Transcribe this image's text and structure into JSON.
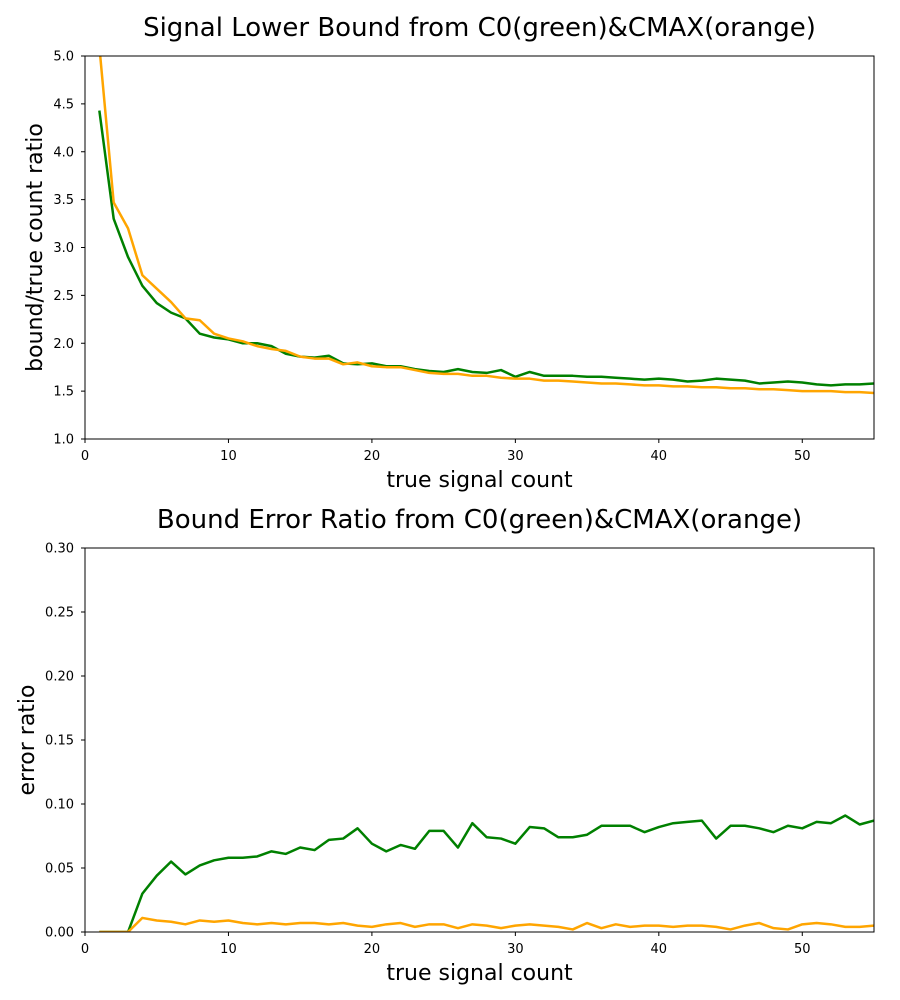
{
  "chart_data": [
    {
      "type": "line",
      "title": "Signal Lower Bound from C0(green)&CMAX(orange)",
      "xlabel": "true signal count",
      "ylabel": "bound/true count ratio",
      "xlim": [
        0,
        55
      ],
      "ylim": [
        1.0,
        5.0
      ],
      "xticks": [
        "0",
        "10",
        "20",
        "30",
        "40",
        "50"
      ],
      "yticks": [
        "1.0",
        "1.5",
        "2.0",
        "2.5",
        "3.0",
        "3.5",
        "4.0",
        "4.5",
        "5.0"
      ],
      "grid": false,
      "x": [
        1,
        2,
        3,
        4,
        5,
        6,
        7,
        8,
        9,
        10,
        11,
        12,
        13,
        14,
        15,
        16,
        17,
        18,
        19,
        20,
        21,
        22,
        23,
        24,
        25,
        26,
        27,
        28,
        29,
        30,
        31,
        32,
        33,
        34,
        35,
        36,
        37,
        38,
        39,
        40,
        41,
        42,
        43,
        44,
        45,
        46,
        47,
        48,
        49,
        50,
        51,
        52,
        53,
        54,
        55
      ],
      "series": [
        {
          "color": "#008000",
          "values": [
            4.43,
            3.3,
            2.9,
            2.6,
            2.42,
            2.32,
            2.26,
            2.1,
            2.06,
            2.04,
            2.0,
            2.0,
            1.97,
            1.89,
            1.86,
            1.85,
            1.87,
            1.79,
            1.78,
            1.79,
            1.76,
            1.76,
            1.73,
            1.71,
            1.7,
            1.73,
            1.7,
            1.69,
            1.72,
            1.65,
            1.7,
            1.66,
            1.66,
            1.66,
            1.65,
            1.65,
            1.64,
            1.63,
            1.62,
            1.63,
            1.62,
            1.6,
            1.61,
            1.63,
            1.62,
            1.61,
            1.58,
            1.59,
            1.6,
            1.59,
            1.57,
            1.56,
            1.57,
            1.57,
            1.58
          ]
        },
        {
          "color": "#ffa500",
          "values": [
            5.1,
            3.47,
            3.2,
            2.71,
            2.57,
            2.43,
            2.26,
            2.24,
            2.1,
            2.05,
            2.02,
            1.97,
            1.94,
            1.92,
            1.86,
            1.84,
            1.84,
            1.78,
            1.8,
            1.76,
            1.75,
            1.75,
            1.72,
            1.69,
            1.68,
            1.68,
            1.66,
            1.66,
            1.64,
            1.63,
            1.63,
            1.61,
            1.61,
            1.6,
            1.59,
            1.58,
            1.58,
            1.57,
            1.56,
            1.56,
            1.55,
            1.55,
            1.54,
            1.54,
            1.53,
            1.53,
            1.52,
            1.52,
            1.51,
            1.5,
            1.5,
            1.5,
            1.49,
            1.49,
            1.48
          ]
        }
      ]
    },
    {
      "type": "line",
      "title": "Bound Error Ratio from C0(green)&CMAX(orange)",
      "xlabel": "true signal count",
      "ylabel": "error ratio",
      "xlim": [
        0,
        55
      ],
      "ylim": [
        0.0,
        0.3
      ],
      "xticks": [
        "0",
        "10",
        "20",
        "30",
        "40",
        "50"
      ],
      "yticks": [
        "0.00",
        "0.05",
        "0.10",
        "0.15",
        "0.20",
        "0.25",
        "0.30"
      ],
      "grid": false,
      "x": [
        1,
        2,
        3,
        4,
        5,
        6,
        7,
        8,
        9,
        10,
        11,
        12,
        13,
        14,
        15,
        16,
        17,
        18,
        19,
        20,
        21,
        22,
        23,
        24,
        25,
        26,
        27,
        28,
        29,
        30,
        31,
        32,
        33,
        34,
        35,
        36,
        37,
        38,
        39,
        40,
        41,
        42,
        43,
        44,
        45,
        46,
        47,
        48,
        49,
        50,
        51,
        52,
        53,
        54,
        55
      ],
      "series": [
        {
          "color": "#008000",
          "values": [
            0.0,
            0.0,
            0.0,
            0.03,
            0.044,
            0.055,
            0.045,
            0.052,
            0.056,
            0.058,
            0.058,
            0.059,
            0.063,
            0.061,
            0.066,
            0.064,
            0.072,
            0.073,
            0.081,
            0.069,
            0.063,
            0.068,
            0.065,
            0.079,
            0.079,
            0.066,
            0.085,
            0.074,
            0.073,
            0.069,
            0.082,
            0.081,
            0.074,
            0.074,
            0.076,
            0.083,
            0.083,
            0.083,
            0.078,
            0.082,
            0.085,
            0.086,
            0.087,
            0.073,
            0.083,
            0.083,
            0.081,
            0.078,
            0.083,
            0.081,
            0.086,
            0.085,
            0.091,
            0.084,
            0.087
          ]
        },
        {
          "color": "#ffa500",
          "values": [
            0.0,
            0.0,
            0.0,
            0.011,
            0.009,
            0.008,
            0.006,
            0.009,
            0.008,
            0.009,
            0.007,
            0.006,
            0.007,
            0.006,
            0.007,
            0.007,
            0.006,
            0.007,
            0.005,
            0.004,
            0.006,
            0.007,
            0.004,
            0.006,
            0.006,
            0.003,
            0.006,
            0.005,
            0.003,
            0.005,
            0.006,
            0.005,
            0.004,
            0.002,
            0.007,
            0.003,
            0.006,
            0.004,
            0.005,
            0.005,
            0.004,
            0.005,
            0.005,
            0.004,
            0.002,
            0.005,
            0.007,
            0.003,
            0.002,
            0.006,
            0.007,
            0.006,
            0.004,
            0.004,
            0.005
          ]
        }
      ]
    }
  ]
}
